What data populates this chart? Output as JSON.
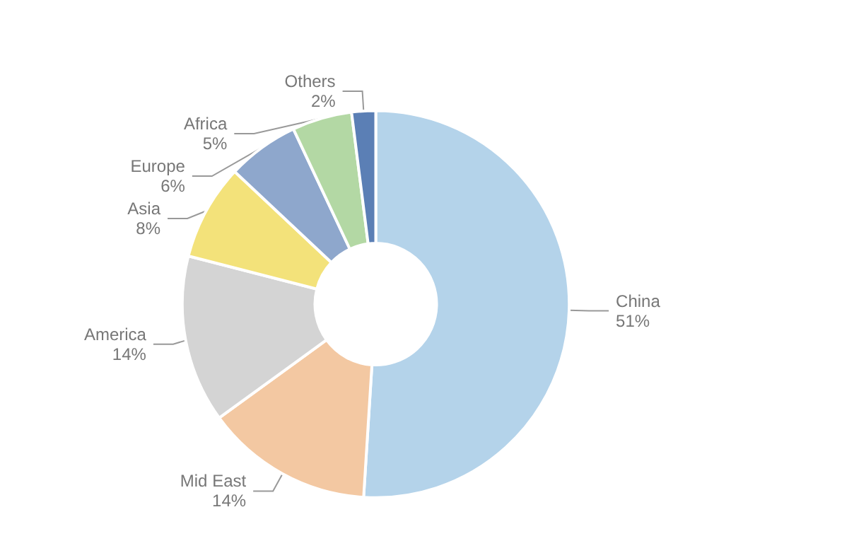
{
  "chart_data": {
    "type": "donut",
    "categories": [
      "China",
      "Mid East",
      "America",
      "Asia",
      "Europe",
      "Africa",
      "Others"
    ],
    "values": [
      51,
      14,
      14,
      8,
      6,
      5,
      2
    ],
    "value_labels": [
      "51%",
      "14%",
      "14%",
      "8%",
      "6%",
      "5%",
      "2%"
    ],
    "colors": [
      "#b4d3ea",
      "#f3c8a2",
      "#d4d4d4",
      "#f3e27a",
      "#8ea7cc",
      "#b3d8a4",
      "#5b7fb5"
    ],
    "legend": false
  }
}
